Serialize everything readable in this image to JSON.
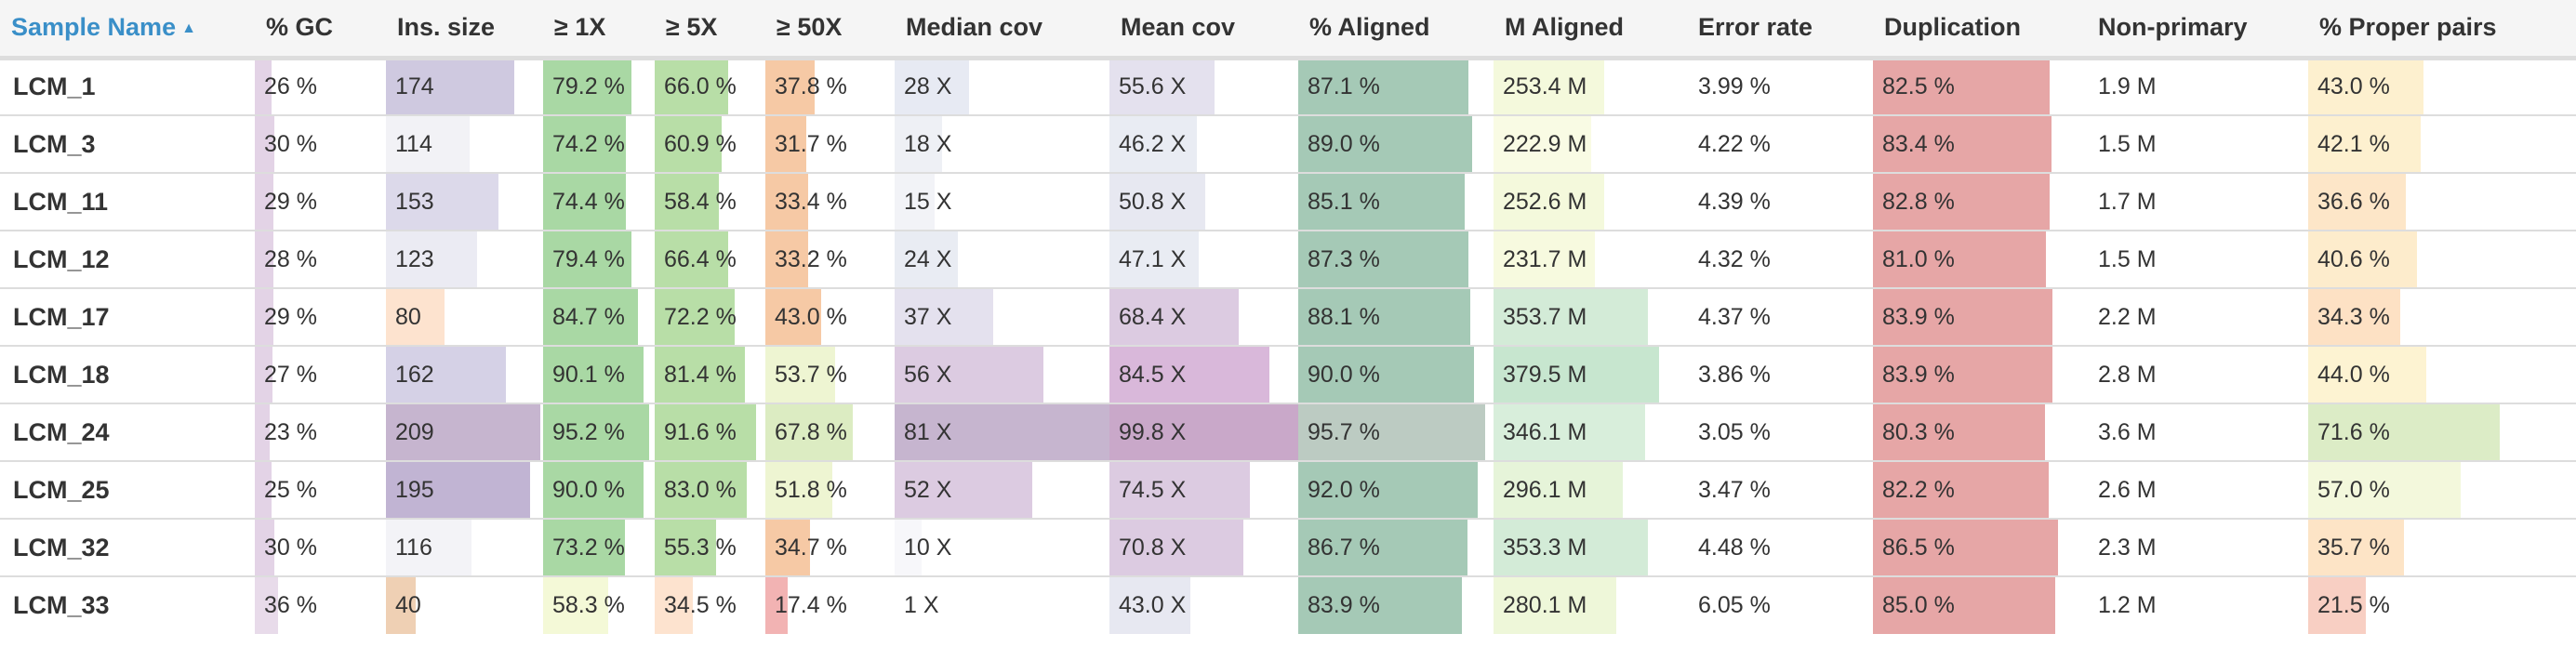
{
  "columns": [
    {
      "key": "sample",
      "label": "Sample Name",
      "sorted": true,
      "sort_icon": "sort-ascending-icon",
      "color": null
    },
    {
      "key": "gc",
      "label": "% GC",
      "color": "#e3d3e6"
    },
    {
      "key": "ins",
      "label": "Ins. size",
      "color": "#b2a8cc"
    },
    {
      "key": "x1",
      "label": "≥ 1X",
      "color": "#a9d8a4"
    },
    {
      "key": "x5",
      "label": "≥ 5X",
      "color": "#b8dea7"
    },
    {
      "key": "x50",
      "label": "≥ 50X",
      "color": "#f6c9a5"
    },
    {
      "key": "median",
      "label": "Median cov",
      "color": "#bca8c8"
    },
    {
      "key": "mean",
      "label": "Mean cov",
      "color": "#c49bcb"
    },
    {
      "key": "aligned",
      "label": "% Aligned",
      "color": "#a5c9b6"
    },
    {
      "key": "maligned",
      "label": "M Aligned",
      "color": "#b6e0bf"
    },
    {
      "key": "err",
      "label": "Error rate",
      "color": null
    },
    {
      "key": "dup",
      "label": "Duplication",
      "color": "#e6a6a6"
    },
    {
      "key": "nonprim",
      "label": "Non-primary",
      "color": null
    },
    {
      "key": "proper",
      "label": "% Proper pairs",
      "color": "#f8e6b8"
    }
  ],
  "rows": [
    {
      "sample": "LCM_1",
      "gc": "26 %",
      "ins": "174",
      "x1": "79.2 %",
      "x5": "66.0 %",
      "x50": "37.8 %",
      "median": "28 X",
      "mean": "55.6 X",
      "aligned": "87.1 %",
      "maligned": "253.4 M",
      "err": "3.99 %",
      "dup": "82.5 %",
      "nonprim": "1.9 M",
      "proper": "43.0 %"
    },
    {
      "sample": "LCM_3",
      "gc": "30 %",
      "ins": "114",
      "x1": "74.2 %",
      "x5": "60.9 %",
      "x50": "31.7 %",
      "median": "18 X",
      "mean": "46.2 X",
      "aligned": "89.0 %",
      "maligned": "222.9 M",
      "err": "4.22 %",
      "dup": "83.4 %",
      "nonprim": "1.5 M",
      "proper": "42.1 %"
    },
    {
      "sample": "LCM_11",
      "gc": "29 %",
      "ins": "153",
      "x1": "74.4 %",
      "x5": "58.4 %",
      "x50": "33.4 %",
      "median": "15 X",
      "mean": "50.8 X",
      "aligned": "85.1 %",
      "maligned": "252.6 M",
      "err": "4.39 %",
      "dup": "82.8 %",
      "nonprim": "1.7 M",
      "proper": "36.6 %"
    },
    {
      "sample": "LCM_12",
      "gc": "28 %",
      "ins": "123",
      "x1": "79.4 %",
      "x5": "66.4 %",
      "x50": "33.2 %",
      "median": "24 X",
      "mean": "47.1 X",
      "aligned": "87.3 %",
      "maligned": "231.7 M",
      "err": "4.32 %",
      "dup": "81.0 %",
      "nonprim": "1.5 M",
      "proper": "40.6 %"
    },
    {
      "sample": "LCM_17",
      "gc": "29 %",
      "ins": "80",
      "x1": "84.7 %",
      "x5": "72.2 %",
      "x50": "43.0 %",
      "median": "37 X",
      "mean": "68.4 X",
      "aligned": "88.1 %",
      "maligned": "353.7 M",
      "err": "4.37 %",
      "dup": "83.9 %",
      "nonprim": "2.2 M",
      "proper": "34.3 %"
    },
    {
      "sample": "LCM_18",
      "gc": "27 %",
      "ins": "162",
      "x1": "90.1 %",
      "x5": "81.4 %",
      "x50": "53.7 %",
      "median": "56 X",
      "mean": "84.5 X",
      "aligned": "90.0 %",
      "maligned": "379.5 M",
      "err": "3.86 %",
      "dup": "83.9 %",
      "nonprim": "2.8 M",
      "proper": "44.0 %"
    },
    {
      "sample": "LCM_24",
      "gc": "23 %",
      "ins": "209",
      "x1": "95.2 %",
      "x5": "91.6 %",
      "x50": "67.8 %",
      "median": "81 X",
      "mean": "99.8 X",
      "aligned": "95.7 %",
      "maligned": "346.1 M",
      "err": "3.05 %",
      "dup": "80.3 %",
      "nonprim": "3.6 M",
      "proper": "71.6 %"
    },
    {
      "sample": "LCM_25",
      "gc": "25 %",
      "ins": "195",
      "x1": "90.0 %",
      "x5": "83.0 %",
      "x50": "51.8 %",
      "median": "52 X",
      "mean": "74.5 X",
      "aligned": "92.0 %",
      "maligned": "296.1 M",
      "err": "3.47 %",
      "dup": "82.2 %",
      "nonprim": "2.6 M",
      "proper": "57.0 %"
    },
    {
      "sample": "LCM_32",
      "gc": "30 %",
      "ins": "116",
      "x1": "73.2 %",
      "x5": "55.3 %",
      "x50": "34.7 %",
      "median": "10 X",
      "mean": "70.8 X",
      "aligned": "86.7 %",
      "maligned": "353.3 M",
      "err": "4.48 %",
      "dup": "86.5 %",
      "nonprim": "2.3 M",
      "proper": "35.7 %"
    },
    {
      "sample": "LCM_33",
      "gc": "36 %",
      "ins": "40",
      "x1": "58.3 %",
      "x5": "34.5 %",
      "x50": "17.4 %",
      "median": "1 X",
      "mean": "43.0 X",
      "aligned": "83.9 %",
      "maligned": "280.1 M",
      "err": "6.05 %",
      "dup": "85.0 %",
      "nonprim": "1.2 M",
      "proper": "21.5 %"
    }
  ]
}
